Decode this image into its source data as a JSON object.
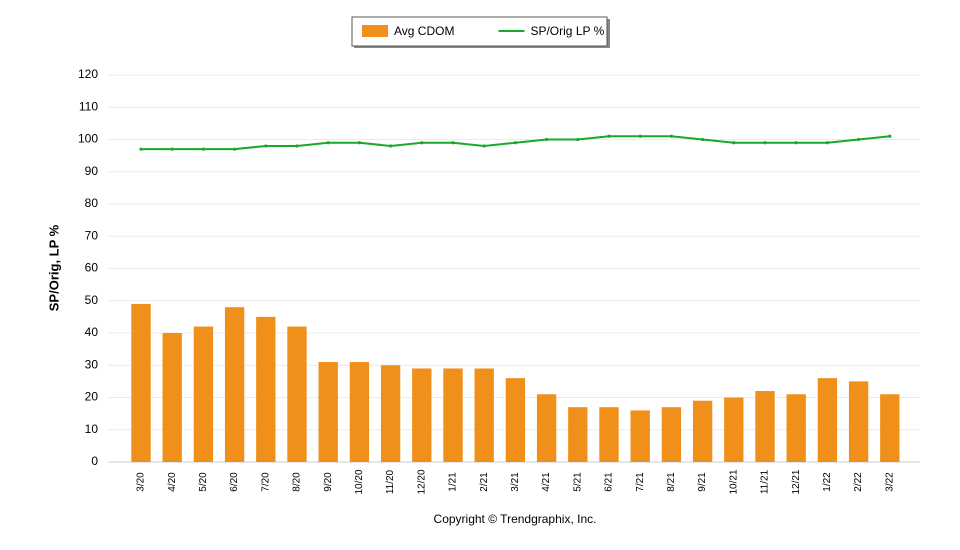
{
  "chart_data": {
    "type": "bar",
    "categories": [
      "3/20",
      "4/20",
      "5/20",
      "6/20",
      "7/20",
      "8/20",
      "9/20",
      "10/20",
      "11/20",
      "12/20",
      "1/21",
      "2/21",
      "3/21",
      "4/21",
      "5/21",
      "6/21",
      "7/21",
      "8/21",
      "9/21",
      "10/21",
      "11/21",
      "12/21",
      "1/22",
      "2/22",
      "3/22"
    ],
    "series": [
      {
        "name": "Avg CDOM",
        "type": "bar",
        "color": "#f0901a",
        "values": [
          49,
          40,
          42,
          48,
          45,
          42,
          31,
          31,
          30,
          29,
          29,
          29,
          26,
          21,
          17,
          17,
          16,
          17,
          19,
          20,
          22,
          21,
          26,
          25,
          21
        ]
      },
      {
        "name": "SP/Orig LP %",
        "type": "line",
        "color": "#1aa82a",
        "values": [
          97,
          97,
          97,
          97,
          98,
          98,
          99,
          99,
          98,
          99,
          99,
          98,
          99,
          100,
          100,
          101,
          101,
          101,
          100,
          99,
          99,
          99,
          99,
          100,
          101
        ]
      }
    ],
    "y_label": "SP/Orig, LP %",
    "ylim": [
      0,
      120
    ],
    "yticks": [
      0,
      10,
      20,
      30,
      40,
      50,
      60,
      70,
      80,
      90,
      100,
      110,
      120
    ],
    "grid": true,
    "legend": "top",
    "credit": "Copyright © Trendgraphix, Inc."
  }
}
